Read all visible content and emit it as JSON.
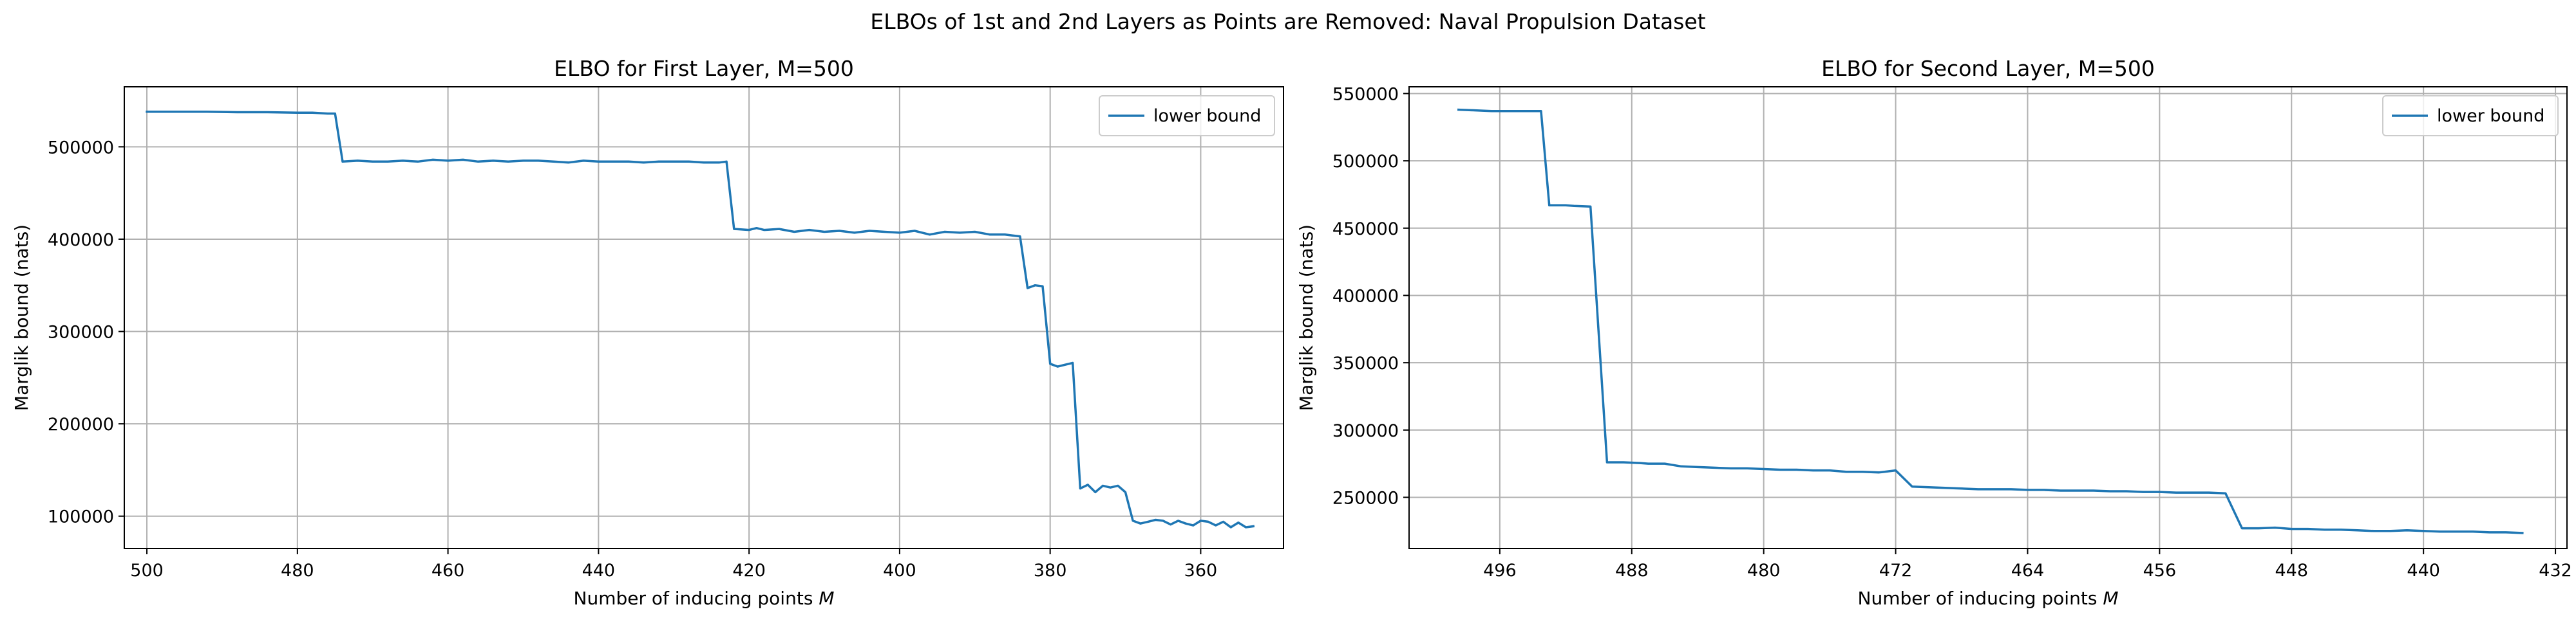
{
  "figure": {
    "suptitle": "ELBOs of 1st and 2nd Layers as Points are Removed: Naval Propulsion Dataset"
  },
  "chart_data": [
    {
      "type": "line",
      "title": "ELBO for First Layer, M=500",
      "xlabel": "Number of inducing points M",
      "ylabel": "Marglik bound (nats)",
      "x_inverted": true,
      "xlim": [
        503,
        349
      ],
      "ylim": [
        65000,
        565000
      ],
      "xticks": [
        500,
        480,
        460,
        440,
        420,
        400,
        380,
        360
      ],
      "xtick_labels": [
        "500",
        "480",
        "460",
        "440",
        "420",
        "400",
        "380",
        "360"
      ],
      "yticks": [
        100000,
        200000,
        300000,
        400000,
        500000
      ],
      "ytick_labels": [
        "100000",
        "200000",
        "300000",
        "400000",
        "500000"
      ],
      "grid": true,
      "legend_position": "top-right",
      "series": [
        {
          "name": "lower bound",
          "color": "#1f77b4",
          "x": [
            500,
            496,
            492,
            488,
            484,
            480,
            478,
            476,
            475,
            474,
            472,
            470,
            468,
            466,
            464,
            462,
            460,
            458,
            456,
            454,
            452,
            450,
            448,
            446,
            444,
            442,
            440,
            438,
            436,
            434,
            432,
            430,
            428,
            426,
            424,
            423,
            422,
            420,
            419,
            418,
            416,
            414,
            412,
            410,
            408,
            406,
            404,
            402,
            400,
            398,
            396,
            394,
            392,
            390,
            388,
            386,
            385,
            384,
            383,
            382,
            381,
            380,
            379,
            378,
            377,
            376,
            375,
            374,
            373,
            372,
            371,
            370,
            369,
            368,
            367,
            366,
            365,
            364,
            363,
            362,
            361,
            360,
            359,
            358,
            357,
            356,
            355,
            354,
            353
          ],
          "y": [
            538000,
            538000,
            538000,
            537500,
            537500,
            537000,
            537000,
            536000,
            536000,
            484000,
            485000,
            484000,
            484000,
            485000,
            484000,
            486000,
            485000,
            486000,
            484000,
            485000,
            484000,
            485000,
            485000,
            484000,
            483000,
            485000,
            484000,
            484000,
            484000,
            483000,
            484000,
            484000,
            484000,
            483000,
            483000,
            484000,
            411000,
            410000,
            412000,
            410000,
            411000,
            408000,
            410000,
            408000,
            409000,
            407000,
            409000,
            408000,
            407000,
            409000,
            405000,
            408000,
            407000,
            408000,
            405000,
            405000,
            404000,
            403000,
            347000,
            350000,
            349000,
            265000,
            262000,
            264000,
            266000,
            130000,
            134000,
            126000,
            133000,
            131000,
            133000,
            126000,
            95000,
            92000,
            94000,
            96000,
            95000,
            91000,
            95000,
            92000,
            90000,
            95000,
            94000,
            90000,
            94000,
            88000,
            93000,
            88000,
            89000
          ]
        }
      ]
    },
    {
      "type": "line",
      "title": "ELBO for Second Layer,  M=500",
      "xlabel": "Number of inducing points M",
      "ylabel": "Marglik bound (nats)",
      "x_inverted": true,
      "xlim": [
        501.5,
        431.3
      ],
      "ylim": [
        212000,
        555000
      ],
      "xticks": [
        496,
        488,
        480,
        472,
        464,
        456,
        448,
        440,
        432
      ],
      "xtick_labels": [
        "496",
        "488",
        "480",
        "472",
        "464",
        "456",
        "448",
        "440",
        "432"
      ],
      "yticks": [
        250000,
        300000,
        350000,
        400000,
        450000,
        500000,
        550000
      ],
      "ytick_labels": [
        "250000",
        "300000",
        "350000",
        "400000",
        "450000",
        "500000",
        "550000"
      ],
      "grid": true,
      "legend_position": "top-right",
      "series": [
        {
          "name": "lower bound",
          "color": "#1f77b4",
          "x": [
            498.5,
            497.5,
            496.5,
            495.5,
            494.5,
            493.5,
            493,
            492,
            491.5,
            490.5,
            489.5,
            488.5,
            487.5,
            487,
            486,
            485,
            484,
            483,
            482,
            481,
            480,
            479,
            478,
            477,
            476,
            475,
            474,
            473,
            472,
            471,
            470,
            469,
            468,
            467,
            466,
            465,
            464,
            463,
            462,
            461,
            460,
            459,
            458,
            457,
            456,
            455,
            454,
            453,
            452,
            451,
            450,
            449,
            448,
            447,
            446,
            445,
            444,
            443,
            442,
            441,
            440,
            439,
            438,
            437,
            436,
            435,
            434
          ],
          "y": [
            538000,
            537500,
            537000,
            537000,
            537000,
            537000,
            467000,
            467000,
            466500,
            466000,
            276000,
            276000,
            275500,
            275000,
            275000,
            273000,
            272500,
            272000,
            271500,
            271500,
            271000,
            270500,
            270500,
            270000,
            270000,
            269000,
            269000,
            268500,
            270000,
            258000,
            257500,
            257000,
            256500,
            256000,
            256000,
            256000,
            255500,
            255500,
            255000,
            255000,
            255000,
            254500,
            254500,
            254000,
            254000,
            253500,
            253500,
            253500,
            253000,
            227000,
            227000,
            227500,
            226500,
            226500,
            226000,
            226000,
            225500,
            225000,
            225000,
            225500,
            225000,
            224500,
            224500,
            224500,
            224000,
            224000,
            223500
          ]
        }
      ]
    }
  ]
}
